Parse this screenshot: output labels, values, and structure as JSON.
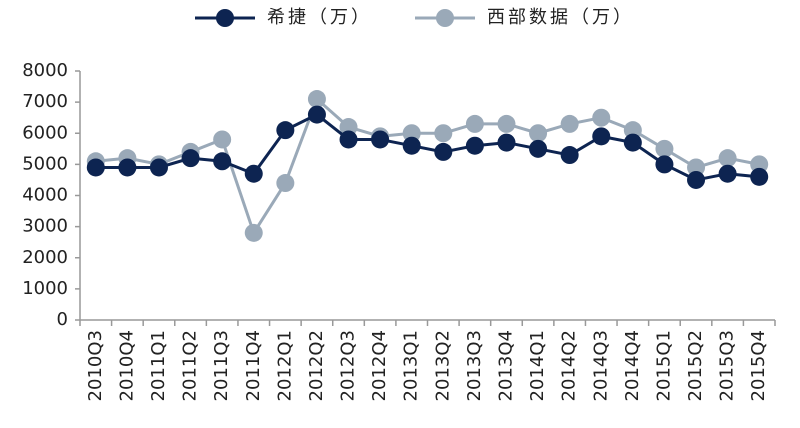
{
  "chart_data": {
    "type": "line",
    "categories": [
      "2010Q3",
      "2010Q4",
      "2011Q1",
      "2011Q2",
      "2011Q3",
      "2011Q4",
      "2012Q1",
      "2012Q2",
      "2012Q3",
      "2012Q4",
      "2013Q1",
      "2013Q2",
      "2013Q3",
      "2013Q4",
      "2014Q1",
      "2014Q2",
      "2014Q3",
      "2014Q4",
      "2015Q1",
      "2015Q2",
      "2015Q3",
      "2015Q4"
    ],
    "series": [
      {
        "name": "希捷（万）",
        "color": "#0d2451",
        "values": [
          4900,
          4900,
          4900,
          5200,
          5100,
          4700,
          6100,
          6600,
          5800,
          5800,
          5600,
          5400,
          5600,
          5700,
          5500,
          5300,
          5900,
          5700,
          5000,
          4500,
          4700,
          4600
        ]
      },
      {
        "name": "西部数据（万）",
        "color": "#9aa9b8",
        "values": [
          5100,
          5200,
          5000,
          5400,
          5800,
          2800,
          4400,
          7100,
          6200,
          5900,
          6000,
          6000,
          6300,
          6300,
          6000,
          6300,
          6500,
          6100,
          5500,
          4900,
          5200,
          5000
        ]
      }
    ],
    "ylim": [
      0,
      8000
    ],
    "yticks": [
      0,
      1000,
      2000,
      3000,
      4000,
      5000,
      6000,
      7000,
      8000
    ],
    "legend": "top"
  }
}
